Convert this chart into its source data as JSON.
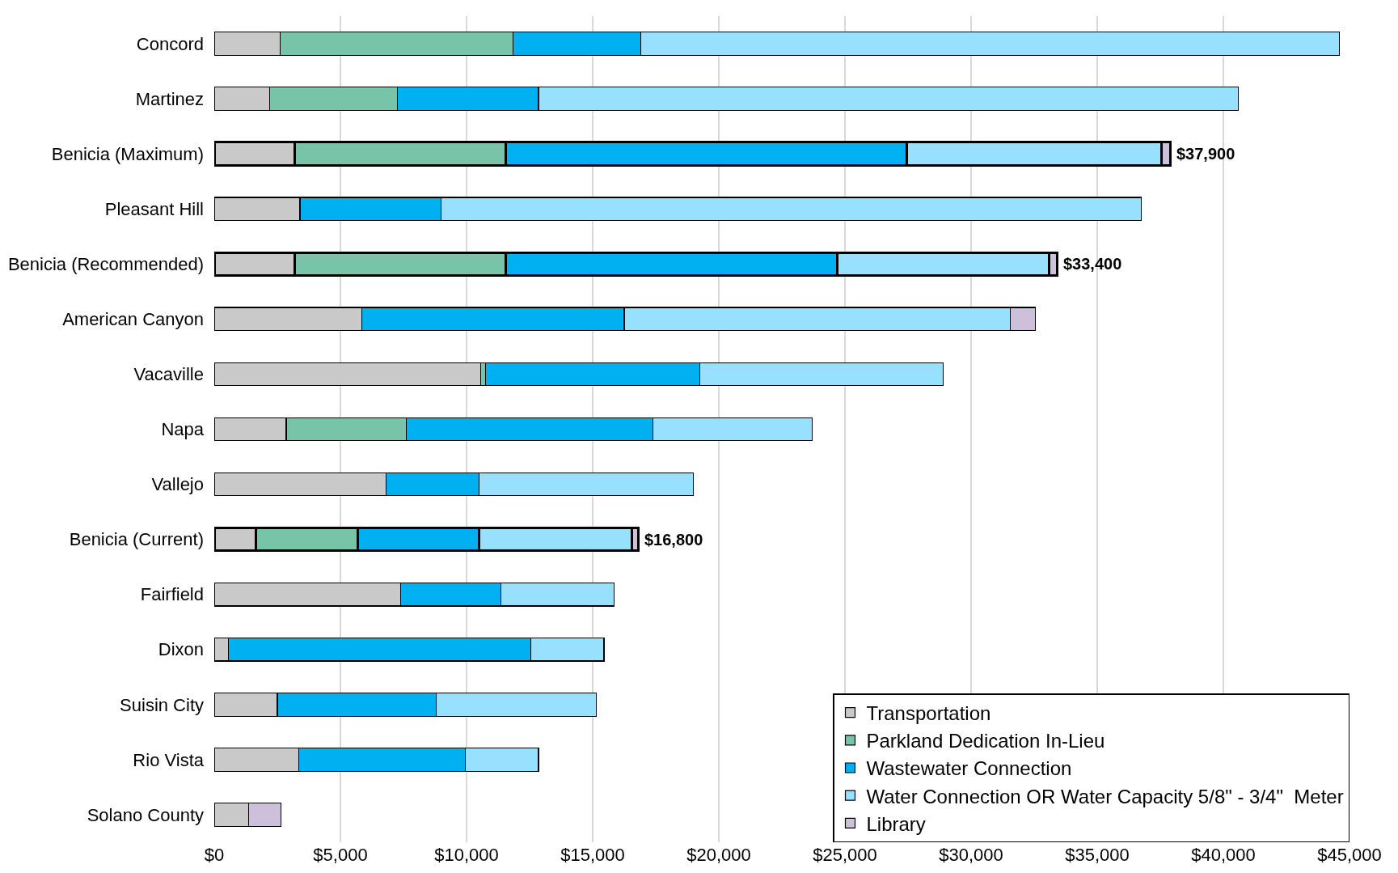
{
  "chart_data": {
    "type": "bar",
    "orientation": "horizontal",
    "stacked": true,
    "categories": [
      "Concord",
      "Martinez",
      "Benicia (Maximum)",
      "Pleasant Hill",
      "Benicia (Recommended)",
      "American Canyon",
      "Vacaville",
      "Napa",
      "Vallejo",
      "Benicia (Current)",
      "Fairfield",
      "Dixon",
      "Suisin City",
      "Rio Vista",
      "Solano County"
    ],
    "series": [
      {
        "name": "Transportation",
        "color": "#c9c9c9",
        "values": [
          2600,
          2200,
          3200,
          3400,
          3200,
          5850,
          10550,
          2850,
          6800,
          1650,
          7400,
          550,
          2500,
          3350,
          1350
        ]
      },
      {
        "name": "Parkland Dedication In-Lieu",
        "color": "#77c4a8",
        "values": [
          9250,
          5050,
          8350,
          null,
          8350,
          null,
          200,
          4750,
          null,
          4050,
          null,
          null,
          null,
          null,
          null
        ]
      },
      {
        "name": "Wastewater Connection",
        "color": "#00b0f0",
        "values": [
          5050,
          5600,
          15900,
          5600,
          13150,
          10400,
          8500,
          9800,
          3700,
          4800,
          3950,
          12000,
          6300,
          6600,
          null
        ]
      },
      {
        "name": "Water Connection OR Water Capacity 5/8\" - 3/4\"  Meter",
        "color": "#97e1ff",
        "values": [
          27700,
          27750,
          10100,
          27750,
          8400,
          15300,
          9650,
          6300,
          8500,
          6050,
          4500,
          2900,
          6350,
          2900,
          null
        ]
      },
      {
        "name": "Library",
        "color": "#ccc0da",
        "values": [
          null,
          null,
          350,
          null,
          300,
          1000,
          null,
          null,
          null,
          250,
          null,
          null,
          null,
          null,
          1300
        ]
      }
    ],
    "totals": [
      null,
      null,
      "$37,900",
      null,
      "$33,400",
      null,
      null,
      null,
      null,
      "$16,800",
      null,
      null,
      null,
      null,
      null
    ],
    "xlim": [
      0,
      45000
    ],
    "xticks": [
      {
        "value": 0,
        "label": "$0"
      },
      {
        "value": 5000,
        "label": "$5,000"
      },
      {
        "value": 10000,
        "label": "$10,000"
      },
      {
        "value": 15000,
        "label": "$15,000"
      },
      {
        "value": 20000,
        "label": "$20,000"
      },
      {
        "value": 25000,
        "label": "$25,000"
      },
      {
        "value": 30000,
        "label": "$30,000"
      },
      {
        "value": 35000,
        "label": "$35,000"
      },
      {
        "value": 40000,
        "label": "$40,000"
      },
      {
        "value": 45000,
        "label": "$45,000"
      }
    ],
    "grid": "x",
    "legend": "bottom right"
  }
}
